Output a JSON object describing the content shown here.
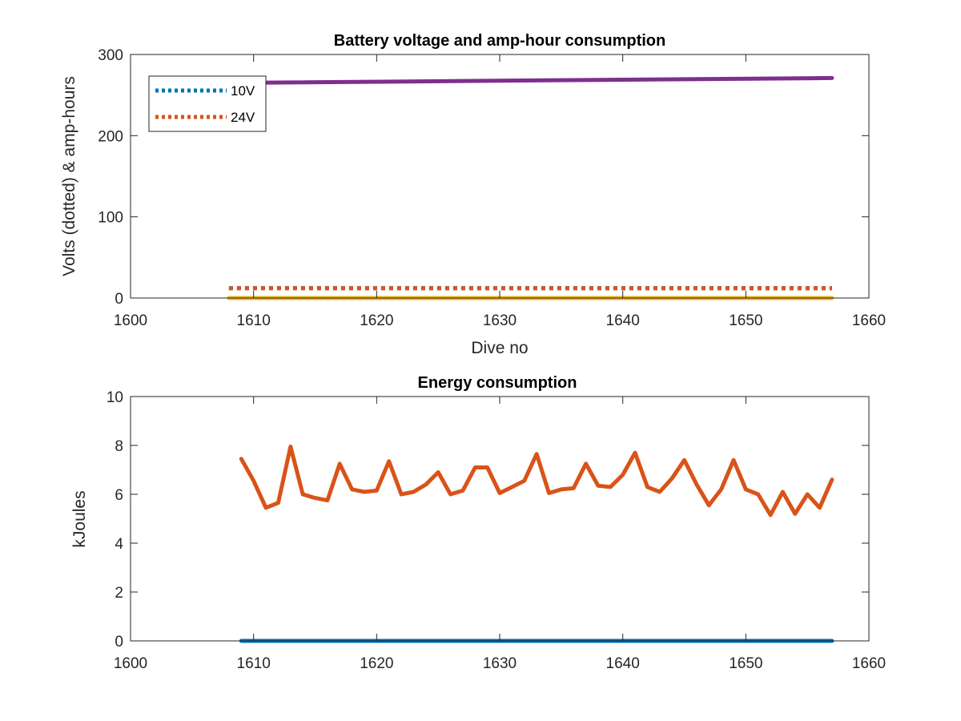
{
  "chart_data": [
    {
      "type": "line",
      "title": "Battery voltage and amp-hour consumption",
      "xlabel": "Dive no",
      "ylabel": "Volts (dotted) & amp-hours",
      "xlim": [
        1600,
        1660
      ],
      "ylim": [
        0,
        300
      ],
      "xticks": [
        "1600",
        "1610",
        "1620",
        "1630",
        "1640",
        "1650",
        "1660"
      ],
      "yticks": [
        "0",
        "100",
        "200",
        "300"
      ],
      "legend_position": "top-left",
      "series": [
        {
          "name": "10V",
          "color": "#0072BD",
          "style": "dotted",
          "x": [
            1608,
            1657
          ],
          "y": [
            12,
            12
          ]
        },
        {
          "name": "24V",
          "color": "#D95319",
          "style": "dotted",
          "x": [
            1608,
            1657
          ],
          "y": [
            12,
            12
          ]
        },
        {
          "color": "#EDB120",
          "style": "solid",
          "x": [
            1608,
            1657
          ],
          "y": [
            0,
            0
          ]
        },
        {
          "color": "#7E2F8E",
          "style": "solid",
          "x": [
            1608,
            1657
          ],
          "y": [
            265,
            271
          ]
        }
      ]
    },
    {
      "type": "line",
      "title": "Energy consumption",
      "xlabel": "",
      "ylabel": "kJoules",
      "xlim": [
        1600,
        1660
      ],
      "ylim": [
        0,
        10
      ],
      "xticks": [
        "1600",
        "1610",
        "1620",
        "1630",
        "1640",
        "1650",
        "1660"
      ],
      "yticks": [
        "0",
        "2",
        "4",
        "6",
        "8",
        "10"
      ],
      "series": [
        {
          "color": "#0072BD",
          "style": "solid",
          "x": [
            1609,
            1657
          ],
          "y": [
            0,
            0
          ]
        },
        {
          "color": "#D95319",
          "style": "solid",
          "x": [
            1609,
            1610,
            1611,
            1612,
            1613,
            1614,
            1615,
            1616,
            1617,
            1618,
            1619,
            1620,
            1621,
            1622,
            1623,
            1624,
            1625,
            1626,
            1627,
            1628,
            1629,
            1630,
            1631,
            1632,
            1633,
            1634,
            1635,
            1636,
            1637,
            1638,
            1639,
            1640,
            1641,
            1642,
            1643,
            1644,
            1645,
            1646,
            1647,
            1648,
            1649,
            1650,
            1651,
            1652,
            1653,
            1654,
            1655,
            1656,
            1657
          ],
          "y": [
            7.45,
            6.55,
            5.45,
            5.65,
            7.95,
            6.0,
            5.85,
            5.75,
            7.25,
            6.2,
            6.1,
            6.15,
            7.35,
            6.0,
            6.1,
            6.4,
            6.9,
            6.0,
            6.15,
            7.1,
            7.1,
            6.05,
            6.3,
            6.55,
            7.65,
            6.05,
            6.2,
            6.25,
            7.25,
            6.35,
            6.3,
            6.8,
            7.7,
            6.3,
            6.1,
            6.65,
            7.4,
            6.4,
            5.55,
            6.2,
            7.4,
            6.2,
            6.0,
            5.15,
            6.1,
            5.2,
            6.0,
            5.45,
            6.6
          ]
        }
      ]
    }
  ]
}
